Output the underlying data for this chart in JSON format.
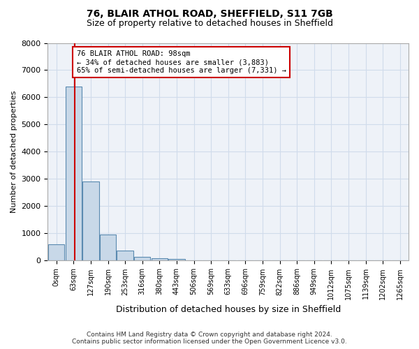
{
  "title1": "76, BLAIR ATHOL ROAD, SHEFFIELD, S11 7GB",
  "title2": "Size of property relative to detached houses in Sheffield",
  "xlabel": "Distribution of detached houses by size in Sheffield",
  "ylabel": "Number of detached properties",
  "bin_labels": [
    "0sqm",
    "63sqm",
    "127sqm",
    "190sqm",
    "253sqm",
    "316sqm",
    "380sqm",
    "443sqm",
    "506sqm",
    "569sqm",
    "633sqm",
    "696sqm",
    "759sqm",
    "822sqm",
    "886sqm",
    "949sqm",
    "1012sqm",
    "1075sqm",
    "1139sqm",
    "1202sqm",
    "1265sqm"
  ],
  "bar_heights": [
    600,
    6400,
    2900,
    950,
    360,
    150,
    90,
    65,
    5,
    2,
    1,
    1,
    0,
    0,
    0,
    0,
    0,
    0,
    0,
    0,
    0
  ],
  "bar_color": "#c8d8e8",
  "bar_edge_color": "#5a8ab0",
  "property_sqm": 98,
  "vline_color": "#cc0000",
  "ylim": [
    0,
    8000
  ],
  "yticks": [
    0,
    1000,
    2000,
    3000,
    4000,
    5000,
    6000,
    7000,
    8000
  ],
  "annotation_title": "76 BLAIR ATHOL ROAD: 98sqm",
  "annotation_line1": "← 34% of detached houses are smaller (3,883)",
  "annotation_line2": "65% of semi-detached houses are larger (7,331) →",
  "annotation_box_color": "#cc0000",
  "footer1": "Contains HM Land Registry data © Crown copyright and database right 2024.",
  "footer2": "Contains public sector information licensed under the Open Government Licence v3.0.",
  "grid_color": "#d0dceb",
  "bg_color": "#eef2f8"
}
